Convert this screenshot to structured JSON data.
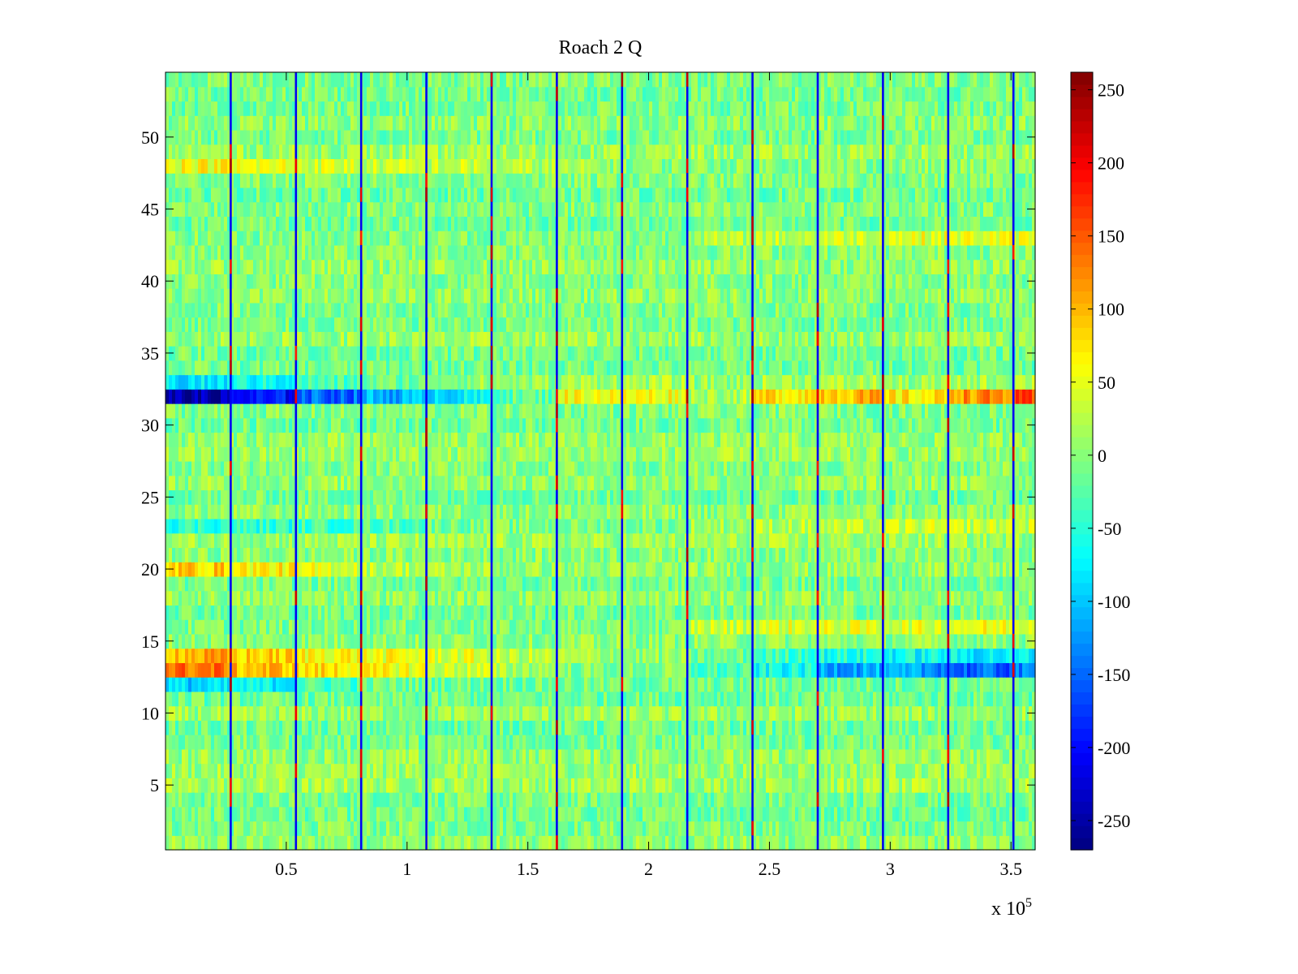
{
  "chart_data": {
    "type": "heatmap",
    "title": "Roach 2 Q",
    "xlabel": "",
    "ylabel": "",
    "x_exponent_label": "x 10",
    "x_exponent_power": "5",
    "xlim": [
      0,
      360000
    ],
    "ylim": [
      0.5,
      54.5
    ],
    "xticks": [
      50000,
      100000,
      150000,
      200000,
      250000,
      300000,
      350000
    ],
    "xtick_labels": [
      "0.5",
      "1",
      "1.5",
      "2",
      "2.5",
      "3",
      "3.5"
    ],
    "yticks": [
      5,
      10,
      15,
      20,
      25,
      30,
      35,
      40,
      45,
      50
    ],
    "ytick_labels": [
      "5",
      "10",
      "15",
      "20",
      "25",
      "30",
      "35",
      "40",
      "45",
      "50"
    ],
    "rows": 54,
    "colormap": "jet",
    "colorbar": {
      "range": [
        -270,
        262
      ],
      "ticks": [
        250,
        200,
        150,
        100,
        50,
        0,
        -50,
        -100,
        -150,
        -200,
        -250
      ],
      "tick_labels": [
        "250",
        "200",
        "150",
        "100",
        "50",
        "0",
        "-50",
        "-100",
        "-150",
        "-200",
        "-250"
      ]
    },
    "segment_boundaries": [
      27000,
      54000,
      81000,
      108000,
      135000,
      162000,
      189000,
      216000,
      243000,
      270000,
      297000,
      324000,
      351000
    ],
    "row_offsets": [
      {
        "row": 32,
        "segments": [
          -250,
          -200,
          -150,
          -110,
          -80,
          -20,
          60,
          60,
          20,
          80,
          100,
          70,
          120,
          150
        ]
      },
      {
        "row": 33,
        "segments": [
          -90,
          -70,
          -40,
          -20,
          0,
          0,
          10,
          10,
          0,
          10,
          10,
          0,
          10,
          20
        ]
      },
      {
        "row": 13,
        "segments": [
          150,
          110,
          90,
          70,
          50,
          30,
          10,
          10,
          -20,
          -50,
          -100,
          -110,
          -140,
          -130
        ]
      },
      {
        "row": 14,
        "segments": [
          100,
          80,
          60,
          50,
          40,
          20,
          10,
          0,
          -20,
          -40,
          -60,
          -70,
          -80,
          -80
        ]
      },
      {
        "row": 12,
        "segments": [
          -80,
          -60,
          -20,
          0,
          0,
          0,
          0,
          0,
          0,
          0,
          0,
          0,
          0,
          0
        ]
      },
      {
        "row": 20,
        "segments": [
          80,
          60,
          40,
          20,
          10,
          0,
          0,
          0,
          0,
          0,
          0,
          0,
          0,
          0
        ]
      },
      {
        "row": 48,
        "segments": [
          60,
          50,
          40,
          30,
          30,
          20,
          10,
          0,
          0,
          0,
          0,
          0,
          0,
          0
        ]
      },
      {
        "row": 16,
        "segments": [
          0,
          0,
          0,
          0,
          0,
          0,
          0,
          0,
          40,
          50,
          50,
          50,
          60,
          60
        ]
      },
      {
        "row": 43,
        "segments": [
          0,
          0,
          0,
          0,
          0,
          0,
          0,
          0,
          20,
          30,
          40,
          50,
          50,
          50
        ]
      },
      {
        "row": 23,
        "segments": [
          -40,
          -40,
          -30,
          -20,
          0,
          0,
          0,
          0,
          20,
          30,
          30,
          40,
          40,
          40
        ]
      }
    ],
    "noise_amplitude": 35,
    "spike_columns_x": [
      27000,
      54000,
      81000,
      108000,
      135000,
      162000,
      189000,
      216000,
      243000,
      270000,
      297000,
      324000,
      351000
    ],
    "spike_value": -210
  }
}
